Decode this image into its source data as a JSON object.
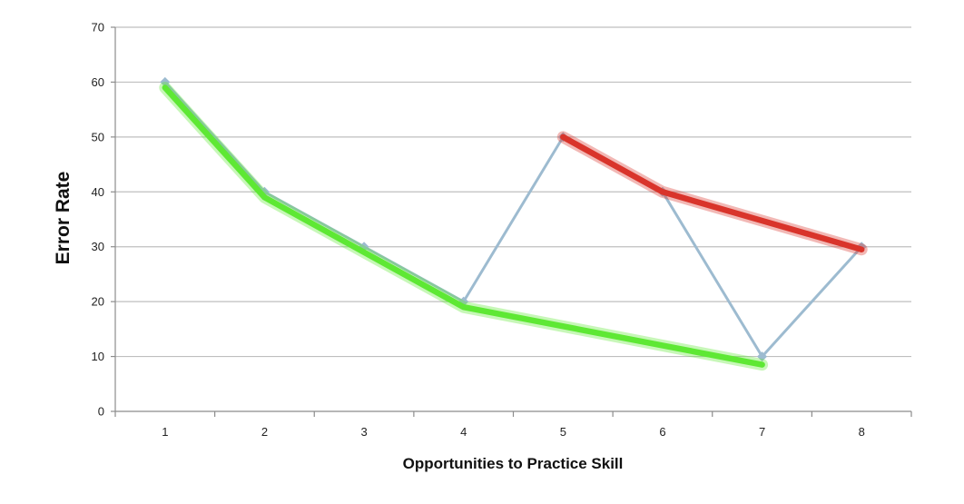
{
  "chart_data": {
    "type": "line",
    "title": "",
    "xlabel": "Opportunities to Practice Skill",
    "ylabel": "Error Rate",
    "x": [
      1,
      2,
      3,
      4,
      5,
      6,
      7,
      8
    ],
    "ylim": [
      0,
      70
    ],
    "yticks": [
      0,
      10,
      20,
      30,
      40,
      50,
      60,
      70
    ],
    "grid": true,
    "legend": "none",
    "series": [
      {
        "values": [
          60,
          40,
          30,
          20,
          50,
          40,
          10,
          30
        ],
        "color": "#9dbbd0",
        "marker": "diamond"
      },
      {
        "x": [
          1,
          2,
          3,
          4,
          7
        ],
        "values": [
          59,
          39,
          29,
          19,
          8.5
        ],
        "color": "#5ee834",
        "style": "highlight"
      },
      {
        "x": [
          5,
          6,
          8
        ],
        "values": [
          50,
          40,
          29.5
        ],
        "color": "#d9342b",
        "style": "highlight"
      }
    ]
  }
}
